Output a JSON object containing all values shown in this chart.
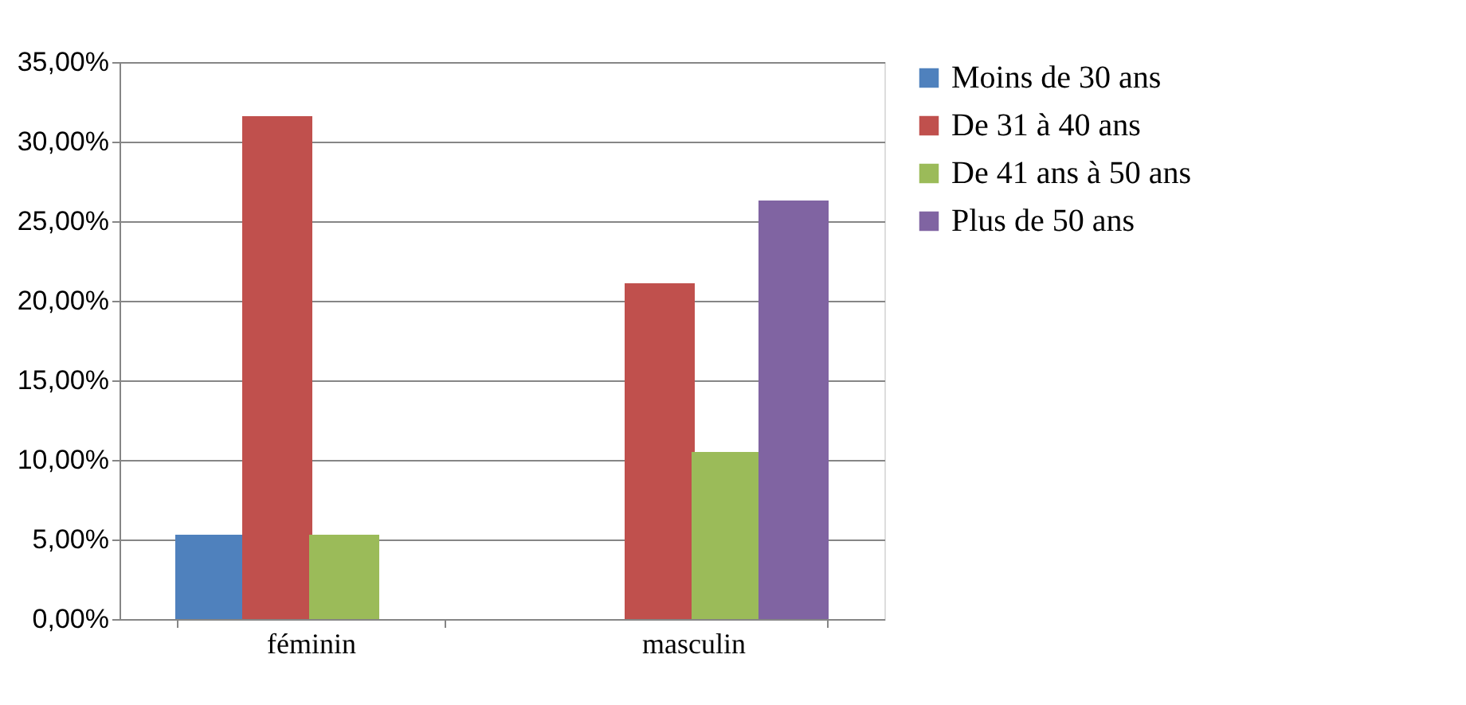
{
  "chart_data": {
    "type": "bar",
    "categories": [
      "féminin",
      "masculin"
    ],
    "series": [
      {
        "name": "Moins de 30 ans",
        "color": "#4f81bd",
        "values": [
          5.3,
          0
        ]
      },
      {
        "name": "De 31 à 40 ans",
        "color": "#c0504d",
        "values": [
          31.6,
          21.1
        ]
      },
      {
        "name": "De 41 ans à 50 ans",
        "color": "#9bbb59",
        "values": [
          5.3,
          10.5
        ]
      },
      {
        "name": "Plus de 50 ans",
        "color": "#8064a2",
        "values": [
          0,
          26.3
        ]
      }
    ],
    "ylim": [
      0,
      35
    ],
    "yticks": [
      {
        "value": 0,
        "label": "0,00%"
      },
      {
        "value": 5,
        "label": "5,00%"
      },
      {
        "value": 10,
        "label": "10,00%"
      },
      {
        "value": 15,
        "label": "15,00%"
      },
      {
        "value": 20,
        "label": "20,00%"
      },
      {
        "value": 25,
        "label": "25,00%"
      },
      {
        "value": 30,
        "label": "30,00%"
      },
      {
        "value": 35,
        "label": "35,00%"
      }
    ],
    "grid": "y",
    "legend": "right"
  }
}
